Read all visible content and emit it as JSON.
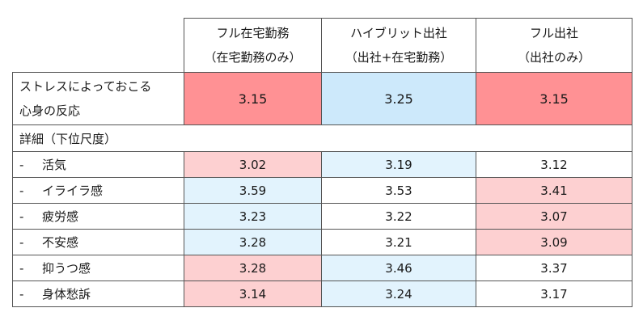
{
  "columns": [
    {
      "line1": "フル在宅勤務",
      "line2": "（在宅勤務のみ）"
    },
    {
      "line1": "ハイブリット出社",
      "line2": "（出社+在宅勤務）"
    },
    {
      "line1": "フル出社",
      "line2": "（出社のみ）"
    }
  ],
  "main_row": {
    "label_line1": "ストレスによっておこる",
    "label_line2": "心身の反応",
    "values": [
      "3.15",
      "3.25",
      "3.15"
    ],
    "colors": [
      "#ff9194",
      "#cde9fb",
      "#ff9194"
    ]
  },
  "section_label": "詳細（下位尺度）",
  "sub_rows": [
    {
      "dash": "-",
      "label": "活気",
      "values": [
        "3.02",
        "3.19",
        "3.12"
      ],
      "colors": [
        "#fdd0d1",
        "#e2f3fd",
        "#ffffff"
      ]
    },
    {
      "dash": "-",
      "label": "イライラ感",
      "values": [
        "3.59",
        "3.53",
        "3.41"
      ],
      "colors": [
        "#e2f3fd",
        "#ffffff",
        "#fdd0d1"
      ]
    },
    {
      "dash": "-",
      "label": "疲労感",
      "values": [
        "3.23",
        "3.22",
        "3.07"
      ],
      "colors": [
        "#e2f3fd",
        "#ffffff",
        "#fdd0d1"
      ]
    },
    {
      "dash": "-",
      "label": "不安感",
      "values": [
        "3.28",
        "3.21",
        "3.09"
      ],
      "colors": [
        "#e2f3fd",
        "#ffffff",
        "#fdd0d1"
      ]
    },
    {
      "dash": "-",
      "label": "抑うつ感",
      "values": [
        "3.28",
        "3.46",
        "3.37"
      ],
      "colors": [
        "#fdd0d1",
        "#e2f3fd",
        "#ffffff"
      ]
    },
    {
      "dash": "-",
      "label": "身体愁訴",
      "values": [
        "3.14",
        "3.24",
        "3.17"
      ],
      "colors": [
        "#fdd0d1",
        "#e2f3fd",
        "#ffffff"
      ]
    }
  ]
}
